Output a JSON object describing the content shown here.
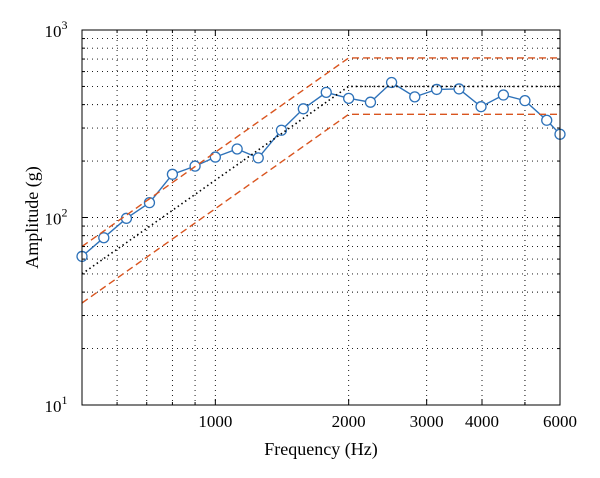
{
  "chart_data": {
    "type": "line",
    "title": "",
    "xlabel": "Frequency (Hz)",
    "ylabel": "Amplitude (g)",
    "x_scale": "log",
    "y_scale": "log",
    "xlim": [
      500,
      6000
    ],
    "ylim": [
      10,
      1000
    ],
    "grid": true,
    "x_tick_labels": [
      {
        "value": 1000,
        "label": "1000"
      },
      {
        "value": 2000,
        "label": "2000"
      },
      {
        "value": 3000,
        "label": "3000"
      },
      {
        "value": 4000,
        "label": "4000"
      },
      {
        "value": 6000,
        "label": "6000"
      }
    ],
    "y_tick_labels": [
      {
        "value": 10,
        "base": "10",
        "exp": "1"
      },
      {
        "value": 100,
        "base": "10",
        "exp": "2"
      },
      {
        "value": 1000,
        "base": "10",
        "exp": "3"
      }
    ],
    "series": [
      {
        "style": "measured",
        "color": "#2e72b9",
        "x": [
          500,
          560,
          630,
          710,
          800,
          900,
          1000,
          1120,
          1250,
          1410,
          1580,
          1780,
          2000,
          2240,
          2500,
          2820,
          3160,
          3550,
          3980,
          4470,
          5000,
          5600,
          6000
        ],
        "y": [
          62,
          78,
          99,
          120,
          170,
          188,
          210,
          232,
          208,
          292,
          380,
          465,
          432,
          412,
          525,
          440,
          482,
          485,
          390,
          450,
          420,
          330,
          278
        ]
      },
      {
        "style": "reference",
        "color": "#000000",
        "x": [
          500,
          2000,
          6000
        ],
        "y": [
          50,
          500,
          500
        ]
      },
      {
        "style": "upper-tolerance",
        "color": "#d9541e",
        "x": [
          500,
          2000,
          6000
        ],
        "y": [
          70,
          710,
          710
        ]
      },
      {
        "style": "lower-tolerance",
        "color": "#d9541e",
        "x": [
          500,
          2000,
          6000
        ],
        "y": [
          35,
          355,
          355
        ]
      }
    ]
  }
}
